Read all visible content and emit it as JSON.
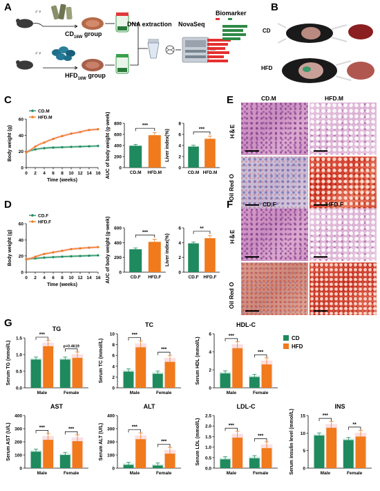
{
  "colors": {
    "cd": "#1e8a5e",
    "hfd": "#f07a1c",
    "hfd_shade": "#f4b8c0",
    "cd_shade": "#9fd6c0"
  },
  "panels": {
    "A": "A",
    "B": "B",
    "C": "C",
    "D": "D",
    "E": "E",
    "F": "F",
    "G": "G"
  },
  "panelA": {
    "cd_group": "CD",
    "cd_group_sub": "16W",
    "cd_group_suffix": " group",
    "hfd_group": "HFD",
    "hfd_group_sub": "16W",
    "hfd_group_suffix": " group",
    "sex_symbols": "♂♀",
    "dna_extraction": "DNA extraction",
    "novaseq": "NovaSeq",
    "biomarker": "Biomarker"
  },
  "panelB": {
    "cd": "CD",
    "hfd": "HFD"
  },
  "histology": {
    "E": {
      "col1": "CD.M",
      "col2": "HFD.M",
      "row1": "H＆E",
      "row2": "Oil Red O"
    },
    "F": {
      "col1": "CD.F",
      "col2": "HFD.F",
      "row1": "H＆E",
      "row2": "Oil Red O"
    }
  },
  "chart_data": [
    {
      "id": "C-line",
      "type": "line",
      "xlabel": "Time  (weeks)",
      "ylabel": "Body weight (g)",
      "x": [
        0,
        1,
        2,
        3,
        4,
        5,
        6,
        7,
        8,
        9,
        10,
        11,
        12,
        13,
        14,
        15,
        16
      ],
      "xticks": [
        0,
        2,
        4,
        6,
        8,
        10,
        12,
        14,
        16
      ],
      "ylim": [
        0,
        60
      ],
      "yticks": [
        0,
        20,
        40,
        60
      ],
      "series": [
        {
          "name": "CD.M",
          "values": [
            19,
            21,
            22.5,
            23.5,
            24,
            24.5,
            24.8,
            25,
            25.2,
            25.4,
            25.6,
            25.8,
            26,
            26.2,
            26.4,
            26.6,
            26.8
          ]
        },
        {
          "name": "HFD.M",
          "values": [
            19,
            22,
            26,
            29,
            31,
            33.5,
            35.5,
            37.5,
            39,
            40.5,
            42,
            43,
            44,
            45.5,
            46.5,
            47,
            47.5
          ]
        }
      ]
    },
    {
      "id": "C-auc",
      "type": "bar",
      "ylabel": "AUC of body weight (g·week)",
      "categories": [
        "CD.M",
        "HFD.M"
      ],
      "values": [
        395,
        585
      ],
      "ylim": [
        0,
        800
      ],
      "yticks": [
        0,
        200,
        400,
        600,
        800
      ],
      "annotation": "***"
    },
    {
      "id": "C-liver",
      "type": "bar",
      "ylabel": "Liver index(%)",
      "categories": [
        "CD.M",
        "HFD.M"
      ],
      "values": [
        3.8,
        5.2
      ],
      "ylim": [
        0,
        8
      ],
      "yticks": [
        0,
        2,
        4,
        6,
        8
      ],
      "annotation": "***"
    },
    {
      "id": "D-line",
      "type": "line",
      "xlabel": "Time  (weeks)",
      "ylabel": "Body weight (g)",
      "x": [
        0,
        1,
        2,
        3,
        4,
        5,
        6,
        7,
        8,
        9,
        10,
        11,
        12,
        13,
        14,
        15,
        16
      ],
      "xticks": [
        0,
        2,
        4,
        6,
        8,
        10,
        12,
        14,
        16
      ],
      "ylim": [
        0,
        60
      ],
      "yticks": [
        0,
        20,
        40,
        60
      ],
      "series": [
        {
          "name": "CD.F",
          "values": [
            16,
            16.5,
            17,
            17.5,
            18,
            18.3,
            18.6,
            18.9,
            19.2,
            19.4,
            19.6,
            19.8,
            20,
            20.2,
            20.4,
            20.6,
            20.8
          ]
        },
        {
          "name": "HFD.F",
          "values": [
            16,
            17,
            19,
            21,
            22.5,
            23.5,
            24.5,
            25.5,
            26.5,
            27.5,
            28.5,
            29,
            29.5,
            30,
            30.3,
            30.6,
            31
          ]
        }
      ]
    },
    {
      "id": "D-auc",
      "type": "bar",
      "ylabel": "AUC of body weight (g·week)",
      "categories": [
        "CD.F",
        "HFD.F"
      ],
      "values": [
        310,
        410
      ],
      "ylim": [
        0,
        600
      ],
      "yticks": [
        0,
        200,
        400,
        600
      ],
      "annotation": "***"
    },
    {
      "id": "D-liver",
      "type": "bar",
      "ylabel": "Liver index(%)",
      "categories": [
        "CD.F",
        "HFD.F"
      ],
      "values": [
        3.9,
        4.6
      ],
      "ylim": [
        0,
        6
      ],
      "yticks": [
        0,
        2,
        4,
        6
      ],
      "annotation": "**"
    },
    {
      "id": "G-TG",
      "type": "bar",
      "title": "TG",
      "ylabel": "Serum TG (mmol/L)",
      "categories": [
        "Male",
        "Female"
      ],
      "ylim": [
        0,
        1.5
      ],
      "yticks": [
        0,
        0.5,
        1.0,
        1.5
      ],
      "series": [
        {
          "name": "CD",
          "values": [
            0.85,
            0.85
          ]
        },
        {
          "name": "HFD",
          "values": [
            1.25,
            0.9
          ]
        }
      ],
      "annotations": [
        "***",
        "p=0.4619"
      ]
    },
    {
      "id": "G-TC",
      "type": "bar",
      "title": "TC",
      "ylabel": "Serum TC (mmol/L)",
      "categories": [
        "Male",
        "Female"
      ],
      "ylim": [
        0,
        10
      ],
      "yticks": [
        0,
        2,
        4,
        6,
        8,
        10
      ],
      "series": [
        {
          "name": "CD",
          "values": [
            3.0,
            2.6
          ]
        },
        {
          "name": "HFD",
          "values": [
            7.5,
            4.8
          ]
        }
      ],
      "annotations": [
        "***",
        "***"
      ]
    },
    {
      "id": "G-HDL",
      "type": "bar",
      "title": "HDL-C",
      "ylabel": "Serum HDL (mmol/L)",
      "categories": [
        "Male",
        "Female"
      ],
      "ylim": [
        0,
        6
      ],
      "yticks": [
        0,
        2,
        4,
        6
      ],
      "series": [
        {
          "name": "CD",
          "values": [
            1.6,
            1.2
          ]
        },
        {
          "name": "HFD",
          "values": [
            4.4,
            2.6
          ]
        }
      ],
      "annotations": [
        "***",
        "***"
      ],
      "legend": [
        "CD",
        "HFD"
      ]
    },
    {
      "id": "G-AST",
      "type": "bar",
      "title": "AST",
      "ylabel": "Serum AST (U/L)",
      "categories": [
        "Male",
        "Female"
      ],
      "ylim": [
        0,
        400
      ],
      "yticks": [
        0,
        100,
        200,
        300,
        400
      ],
      "series": [
        {
          "name": "CD",
          "values": [
            125,
            100
          ]
        },
        {
          "name": "HFD",
          "values": [
            215,
            205
          ]
        }
      ],
      "annotations": [
        "***",
        "***"
      ]
    },
    {
      "id": "G-ALT",
      "type": "bar",
      "title": "ALT",
      "ylabel": "Serum ALT (U/L)",
      "categories": [
        "Male",
        "Female"
      ],
      "ylim": [
        0,
        400
      ],
      "yticks": [
        0,
        100,
        200,
        300,
        400
      ],
      "series": [
        {
          "name": "CD",
          "values": [
            25,
            20
          ]
        },
        {
          "name": "HFD",
          "values": [
            220,
            110
          ]
        }
      ],
      "annotations": [
        "***",
        "***"
      ]
    },
    {
      "id": "G-LDL",
      "type": "bar",
      "title": "LDL-C",
      "ylabel": "Serum LDL (mmol/L)",
      "categories": [
        "Male",
        "Female"
      ],
      "ylim": [
        0,
        2.5
      ],
      "yticks": [
        0,
        0.5,
        1.0,
        1.5,
        2.0,
        2.5
      ],
      "series": [
        {
          "name": "CD",
          "values": [
            0.42,
            0.47
          ]
        },
        {
          "name": "HFD",
          "values": [
            1.45,
            0.95
          ]
        }
      ],
      "annotations": [
        "***",
        "***"
      ]
    },
    {
      "id": "G-INS",
      "type": "bar",
      "title": "INS",
      "ylabel": "Serum insulin level (mmol/L)",
      "categories": [
        "Male",
        "Female"
      ],
      "ylim": [
        0,
        15
      ],
      "yticks": [
        0,
        5,
        10,
        15
      ],
      "series": [
        {
          "name": "CD",
          "values": [
            9.3,
            8.0
          ]
        },
        {
          "name": "HFD",
          "values": [
            11.5,
            9.0
          ]
        }
      ],
      "annotations": [
        "***",
        "**"
      ]
    }
  ]
}
